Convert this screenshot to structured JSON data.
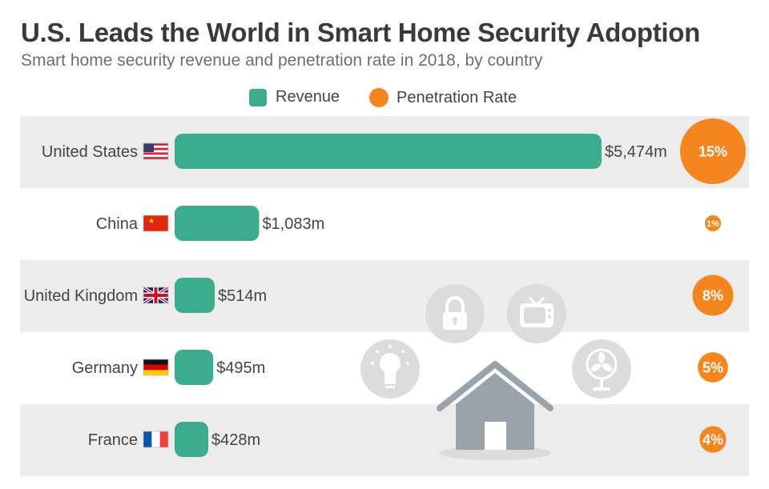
{
  "title": "U.S. Leads the World in Smart Home Security Adoption",
  "subtitle": "Smart home security revenue and penetration rate in 2018, by country",
  "legend": {
    "revenue": "Revenue",
    "penetration": "Penetration Rate"
  },
  "colors": {
    "revenue": "#3dab8e",
    "penetration": "#f5861f",
    "row_shade": "#ececec",
    "icon_gray": "#dcdcdc",
    "house": "#9aa3ab"
  },
  "chart_data": {
    "type": "bar",
    "categories": [
      "United States",
      "China",
      "United Kingdom",
      "Germany",
      "France"
    ],
    "flags": [
      "us-flag-icon",
      "china-flag-icon",
      "uk-flag-icon",
      "germany-flag-icon",
      "france-flag-icon"
    ],
    "series": [
      {
        "name": "Revenue",
        "values": [
          5474,
          1083,
          514,
          495,
          428
        ],
        "labels": [
          "$5,474m",
          "$1,083m",
          "$514m",
          "$495m",
          "$428m"
        ]
      },
      {
        "name": "Penetration Rate",
        "values": [
          15,
          1,
          8,
          5,
          4
        ],
        "labels": [
          "15%",
          "1%",
          "8%",
          "5%",
          "4%"
        ]
      }
    ]
  },
  "decorative_icons": [
    "lightbulb-icon",
    "lock-icon",
    "tv-icon",
    "fan-icon",
    "house-icon"
  ]
}
